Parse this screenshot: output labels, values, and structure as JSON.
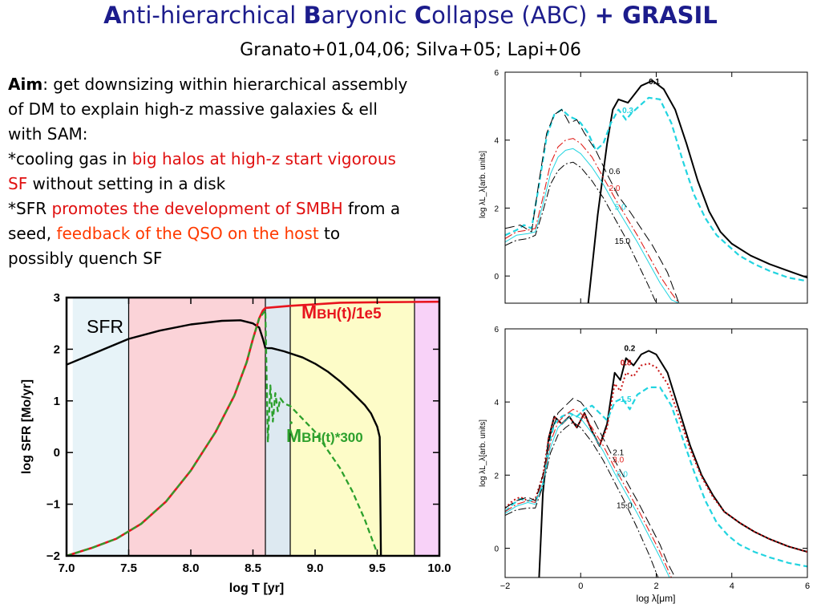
{
  "slide": {
    "title_parts": [
      "A",
      "nti-hierarchical ",
      "B",
      "aryonic ",
      "C",
      "ollapse (ABC) ",
      "+ GRASIL"
    ],
    "subtitle": "Granato+01,04,06; Silva+05; Lapi+06"
  },
  "aim": {
    "l1_bold": "Aim",
    "l1": ": get downsizing within hierarchical assembly",
    "l2": "of DM to explain  high-z massive galaxies & ell",
    "l3": "with SAM:",
    "l4a": "*cooling gas in ",
    "l4b": "big halos at high-z start vigorous",
    "l5a": "SF",
    "l5b": " without setting in a disk",
    "l6a": "*SFR ",
    "l6b": "promotes the development of SMBH",
    "l6c": " from a",
    "l7a": "seed, ",
    "l7b": "feedback of the QSO on the host",
    "l7c": " to",
    "l8": "possibly quench SF"
  },
  "chart_data": [
    {
      "type": "line",
      "xlabel": "log T [yr]",
      "ylabel": "log SFR [Mo/yr]",
      "xlim": [
        7.0,
        10.0
      ],
      "ylim": [
        -2,
        3
      ],
      "xticks": [
        "7.0",
        "7.5",
        "8.0",
        "8.5",
        "9.0",
        "9.5",
        "10.0"
      ],
      "yticks": [
        "−2",
        "−1",
        "0",
        "1",
        "2",
        "3"
      ],
      "labels": {
        "sfr": "SFR",
        "mbh_main": "M",
        "mbh_sub": "BH",
        "mbh_rest": "(t)/1e5",
        "mdot_main": "M",
        "mdot_sub": "BH",
        "mdot_rest": "(t)*300"
      },
      "bands": [
        {
          "x0": 7.05,
          "x1": 7.5,
          "color": "#e7f3f8"
        },
        {
          "x0": 7.5,
          "x1": 8.6,
          "color": "#fbd3d8"
        },
        {
          "x0": 8.6,
          "x1": 8.8,
          "color": "#dde9f1"
        },
        {
          "x0": 8.8,
          "x1": 9.8,
          "color": "#fdfcc8"
        },
        {
          "x0": 9.8,
          "x1": 10.0,
          "color": "#f8d2f8"
        }
      ],
      "band_edges": [
        7.5,
        8.6,
        8.8,
        9.8
      ],
      "series": [
        {
          "name": "SFR",
          "color": "#000000",
          "style": "solid",
          "width": 2.4,
          "x": [
            7.0,
            7.25,
            7.5,
            7.75,
            8.0,
            8.25,
            8.4,
            8.5,
            8.55,
            8.58,
            8.6,
            8.65,
            8.75,
            8.9,
            9.0,
            9.1,
            9.2,
            9.3,
            9.4,
            9.45,
            9.5,
            9.52,
            9.53
          ],
          "y": [
            1.7,
            1.95,
            2.2,
            2.36,
            2.48,
            2.55,
            2.56,
            2.5,
            2.42,
            2.2,
            2.02,
            2.02,
            1.96,
            1.84,
            1.72,
            1.57,
            1.38,
            1.16,
            0.92,
            0.76,
            0.5,
            0.3,
            -2.0
          ]
        },
        {
          "name": "MBH(t)/1e5",
          "color": "#e8141e",
          "style": "solid",
          "width": 2.6,
          "x": [
            7.0,
            7.2,
            7.4,
            7.6,
            7.8,
            8.0,
            8.2,
            8.35,
            8.45,
            8.5,
            8.55,
            8.58,
            8.6,
            8.8,
            9.0,
            9.2,
            9.5,
            10.0
          ],
          "y": [
            -2.0,
            -1.85,
            -1.67,
            -1.38,
            -0.95,
            -0.35,
            0.4,
            1.1,
            1.75,
            2.2,
            2.6,
            2.75,
            2.8,
            2.84,
            2.87,
            2.9,
            2.91,
            2.92
          ]
        },
        {
          "name": "Mdot BH(t)*300",
          "color": "#2ca02c",
          "style": "dashed",
          "width": 2.3,
          "x": [
            7.0,
            7.2,
            7.4,
            7.6,
            7.8,
            8.0,
            8.2,
            8.35,
            8.45,
            8.5,
            8.55,
            8.6,
            8.62,
            8.64,
            8.66,
            8.68,
            8.7,
            8.72,
            8.75,
            8.8,
            8.9,
            9.0,
            9.1,
            9.2,
            9.3,
            9.4,
            9.5
          ],
          "y": [
            -2.0,
            -1.85,
            -1.67,
            -1.38,
            -0.95,
            -0.35,
            0.4,
            1.1,
            1.75,
            2.2,
            2.6,
            2.75,
            0.2,
            1.3,
            0.6,
            1.15,
            0.8,
            1.05,
            0.95,
            0.9,
            0.65,
            0.4,
            0.05,
            -0.3,
            -0.75,
            -1.3,
            -1.95
          ]
        }
      ]
    },
    {
      "type": "line",
      "xlabel": "",
      "ylabel": "log λL_λ[arb. units]",
      "xlim": [
        -2,
        6
      ],
      "ylim": [
        -0.8,
        6
      ],
      "yticks": [
        "0",
        "2",
        "4",
        "6"
      ],
      "series": [
        {
          "name": "0.1",
          "color": "#000000",
          "style": "solid",
          "width": 2.0,
          "x": [
            0.2,
            0.45,
            0.7,
            0.85,
            1.0,
            1.25,
            1.6,
            1.9,
            2.2,
            2.5,
            2.8,
            3.1,
            3.4,
            3.7,
            4.0,
            4.5,
            5.0,
            5.5,
            6.0
          ],
          "y": [
            -0.8,
            1.8,
            3.9,
            4.9,
            5.2,
            5.1,
            5.6,
            5.75,
            5.5,
            4.9,
            3.9,
            2.8,
            1.9,
            1.3,
            0.95,
            0.6,
            0.35,
            0.15,
            -0.05
          ]
        },
        {
          "name": "0.3",
          "color": "#22d4e0",
          "style": "dashed",
          "width": 2.2,
          "x": [
            -2.0,
            -1.7,
            -1.5,
            -1.3,
            -1.1,
            -0.9,
            -0.7,
            -0.5,
            -0.3,
            -0.1,
            0.0,
            0.2,
            0.4,
            0.6,
            0.8,
            1.0,
            1.2,
            1.35,
            1.5,
            1.8,
            2.1,
            2.4,
            2.7,
            3.0,
            3.3,
            3.6,
            3.9,
            4.2,
            4.6,
            5.0,
            5.5,
            6.0
          ],
          "y": [
            1.2,
            1.35,
            1.5,
            1.4,
            2.7,
            4.1,
            4.75,
            4.9,
            4.7,
            4.6,
            4.5,
            4.2,
            3.7,
            3.9,
            4.5,
            4.9,
            4.6,
            4.8,
            4.95,
            5.25,
            5.2,
            4.5,
            3.4,
            2.4,
            1.7,
            1.2,
            0.9,
            0.6,
            0.35,
            0.15,
            -0.05,
            -0.15
          ]
        },
        {
          "name": "0.6",
          "color": "#000000",
          "style": "longdash",
          "width": 1.0,
          "x": [
            -2.0,
            -1.6,
            -1.3,
            -1.1,
            -0.9,
            -0.7,
            -0.5,
            -0.3,
            -0.1,
            0.1,
            0.4,
            0.7,
            1.0,
            1.3,
            1.6,
            1.9,
            2.1,
            2.3,
            2.6
          ],
          "y": [
            1.4,
            1.5,
            1.3,
            2.8,
            4.2,
            4.75,
            4.9,
            4.5,
            4.6,
            4.2,
            3.7,
            3.0,
            2.35,
            1.9,
            1.4,
            0.9,
            0.5,
            0.1,
            -0.8
          ]
        },
        {
          "name": "2.0",
          "color": "#e0201c",
          "style": "dashdot",
          "width": 1.1,
          "x": [
            -2.0,
            -1.7,
            -1.4,
            -1.2,
            -1.0,
            -0.8,
            -0.6,
            -0.4,
            -0.2,
            0.0,
            0.3,
            0.6,
            0.9,
            1.2,
            1.5,
            1.8,
            2.1,
            2.4,
            2.6
          ],
          "y": [
            1.1,
            1.3,
            1.35,
            1.4,
            2.3,
            3.3,
            3.8,
            4.0,
            4.05,
            3.9,
            3.5,
            2.9,
            2.3,
            1.75,
            1.2,
            0.6,
            0.0,
            -0.5,
            -0.8
          ]
        },
        {
          "name": "5.0",
          "color": "#22d4e0",
          "style": "solid",
          "width": 1.0,
          "x": [
            -2.0,
            -1.7,
            -1.4,
            -1.2,
            -1.0,
            -0.8,
            -0.6,
            -0.4,
            -0.2,
            0.0,
            0.3,
            0.6,
            0.9,
            1.2,
            1.5,
            1.8,
            2.1,
            2.4,
            2.6
          ],
          "y": [
            1.0,
            1.2,
            1.25,
            1.3,
            2.1,
            3.0,
            3.5,
            3.7,
            3.75,
            3.6,
            3.2,
            2.7,
            2.1,
            1.55,
            1.0,
            0.4,
            -0.2,
            -0.7,
            -0.8
          ]
        },
        {
          "name": "15.0",
          "color": "#000000",
          "style": "dashdot",
          "width": 1.0,
          "x": [
            -2.0,
            -1.7,
            -1.4,
            -1.2,
            -1.0,
            -0.8,
            -0.6,
            -0.4,
            -0.2,
            0.0,
            0.3,
            0.6,
            0.9,
            1.2,
            1.5,
            1.8,
            2.0
          ],
          "y": [
            0.9,
            1.05,
            1.1,
            1.2,
            1.9,
            2.7,
            3.1,
            3.3,
            3.35,
            3.2,
            2.8,
            2.3,
            1.7,
            1.1,
            0.4,
            -0.3,
            -0.8
          ]
        }
      ]
    },
    {
      "type": "line",
      "xlabel": "log λ[μm]",
      "ylabel": "log λL_λ[arb. units]",
      "xlim": [
        -2,
        6
      ],
      "ylim": [
        -0.8,
        6
      ],
      "xticks": [
        "−2",
        "0",
        "2",
        "4",
        "6"
      ],
      "yticks": [
        "0",
        "2",
        "4",
        "6"
      ],
      "series": [
        {
          "name": "0.2",
          "color": "#000000",
          "style": "solid",
          "width": 2.0,
          "x": [
            -1.1,
            -1.0,
            -0.85,
            -0.7,
            -0.5,
            -0.3,
            -0.1,
            0.1,
            0.3,
            0.5,
            0.7,
            0.9,
            1.05,
            1.2,
            1.4,
            1.6,
            1.8,
            2.0,
            2.3,
            2.6,
            2.9,
            3.2,
            3.5,
            3.8,
            4.2,
            4.6,
            5.0,
            5.5,
            6.0
          ],
          "y": [
            -0.8,
            1.5,
            3.0,
            3.6,
            3.4,
            3.6,
            3.3,
            3.7,
            3.2,
            2.8,
            3.4,
            4.8,
            4.6,
            5.2,
            5.0,
            5.3,
            5.4,
            5.3,
            4.8,
            3.8,
            2.8,
            2.0,
            1.45,
            1.0,
            0.7,
            0.45,
            0.25,
            0.05,
            -0.1
          ]
        },
        {
          "name": "0.8",
          "color": "#c81414",
          "style": "dotted",
          "width": 2.0,
          "x": [
            -2.0,
            -1.8,
            -1.6,
            -1.4,
            -1.2,
            -1.0,
            -0.85,
            -0.7,
            -0.5,
            -0.3,
            -0.1,
            0.1,
            0.3,
            0.5,
            0.7,
            0.9,
            1.05,
            1.2,
            1.4,
            1.6,
            1.8,
            2.0,
            2.3,
            2.6,
            2.9,
            3.2,
            3.5,
            3.8,
            4.2,
            4.6,
            5.0,
            5.5,
            6.0
          ],
          "y": [
            1.1,
            1.3,
            1.4,
            1.3,
            1.35,
            2.0,
            3.0,
            3.6,
            3.4,
            3.6,
            3.3,
            3.7,
            3.2,
            2.8,
            3.3,
            4.5,
            4.3,
            4.8,
            4.7,
            5.0,
            5.05,
            4.95,
            4.5,
            3.6,
            2.7,
            1.95,
            1.4,
            1.0,
            0.7,
            0.45,
            0.25,
            0.05,
            -0.1
          ]
        },
        {
          "name": "1.5",
          "color": "#22d4e0",
          "style": "dashed",
          "width": 2.2,
          "x": [
            -2.0,
            -1.8,
            -1.6,
            -1.4,
            -1.2,
            -1.0,
            -0.85,
            -0.7,
            -0.5,
            -0.3,
            -0.1,
            0.1,
            0.3,
            0.5,
            0.7,
            0.9,
            1.1,
            1.3,
            1.5,
            1.8,
            2.1,
            2.4,
            2.7,
            3.0,
            3.3,
            3.6,
            3.9,
            4.2,
            4.6,
            5.0,
            5.5,
            6.0
          ],
          "y": [
            1.0,
            1.2,
            1.35,
            1.3,
            1.3,
            1.7,
            2.8,
            3.4,
            3.6,
            3.7,
            3.6,
            3.8,
            3.9,
            3.7,
            3.5,
            4.0,
            4.1,
            3.8,
            4.2,
            4.4,
            4.4,
            3.9,
            3.0,
            2.1,
            1.3,
            0.7,
            0.35,
            0.1,
            -0.1,
            -0.25,
            -0.4,
            -0.5
          ]
        },
        {
          "name": "2.1",
          "color": "#000000",
          "style": "longdash",
          "width": 1.0,
          "x": [
            -2.0,
            -1.7,
            -1.4,
            -1.2,
            -1.0,
            -0.8,
            -0.6,
            -0.4,
            -0.2,
            0.0,
            0.3,
            0.6,
            0.9,
            1.2,
            1.5,
            1.8,
            2.1,
            2.3,
            2.5
          ],
          "y": [
            1.1,
            1.3,
            1.4,
            1.3,
            2.0,
            3.1,
            3.7,
            3.9,
            4.1,
            4.0,
            3.6,
            3.0,
            2.4,
            1.85,
            1.3,
            0.7,
            0.1,
            -0.4,
            -0.8
          ]
        },
        {
          "name": "3.0",
          "color": "#e0201c",
          "style": "dashdot",
          "width": 1.1,
          "x": [
            -2.0,
            -1.7,
            -1.4,
            -1.2,
            -1.0,
            -0.8,
            -0.6,
            -0.4,
            -0.2,
            0.0,
            0.3,
            0.6,
            0.9,
            1.2,
            1.5,
            1.8,
            2.1,
            2.4
          ],
          "y": [
            1.0,
            1.2,
            1.3,
            1.25,
            1.9,
            2.9,
            3.45,
            3.65,
            3.8,
            3.7,
            3.3,
            2.8,
            2.2,
            1.65,
            1.1,
            0.5,
            -0.1,
            -0.8
          ]
        },
        {
          "name": "6.0",
          "color": "#22d4e0",
          "style": "solid",
          "width": 1.0,
          "x": [
            -2.0,
            -1.7,
            -1.4,
            -1.2,
            -1.0,
            -0.8,
            -0.6,
            -0.4,
            -0.2,
            0.0,
            0.3,
            0.6,
            0.9,
            1.2,
            1.5,
            1.8,
            2.1,
            2.35
          ],
          "y": [
            0.95,
            1.15,
            1.25,
            1.2,
            1.8,
            2.75,
            3.3,
            3.5,
            3.65,
            3.55,
            3.15,
            2.65,
            2.05,
            1.5,
            0.95,
            0.35,
            -0.25,
            -0.8
          ]
        },
        {
          "name": "15.0",
          "color": "#000000",
          "style": "dashdot",
          "width": 1.0,
          "x": [
            -2.0,
            -1.7,
            -1.4,
            -1.2,
            -1.0,
            -0.8,
            -0.6,
            -0.4,
            -0.2,
            0.0,
            0.3,
            0.6,
            0.9,
            1.2,
            1.5,
            1.8,
            2.05
          ],
          "y": [
            0.9,
            1.05,
            1.1,
            1.1,
            1.7,
            2.6,
            3.1,
            3.3,
            3.45,
            3.3,
            2.9,
            2.4,
            1.8,
            1.2,
            0.55,
            -0.15,
            -0.8
          ]
        }
      ]
    }
  ]
}
